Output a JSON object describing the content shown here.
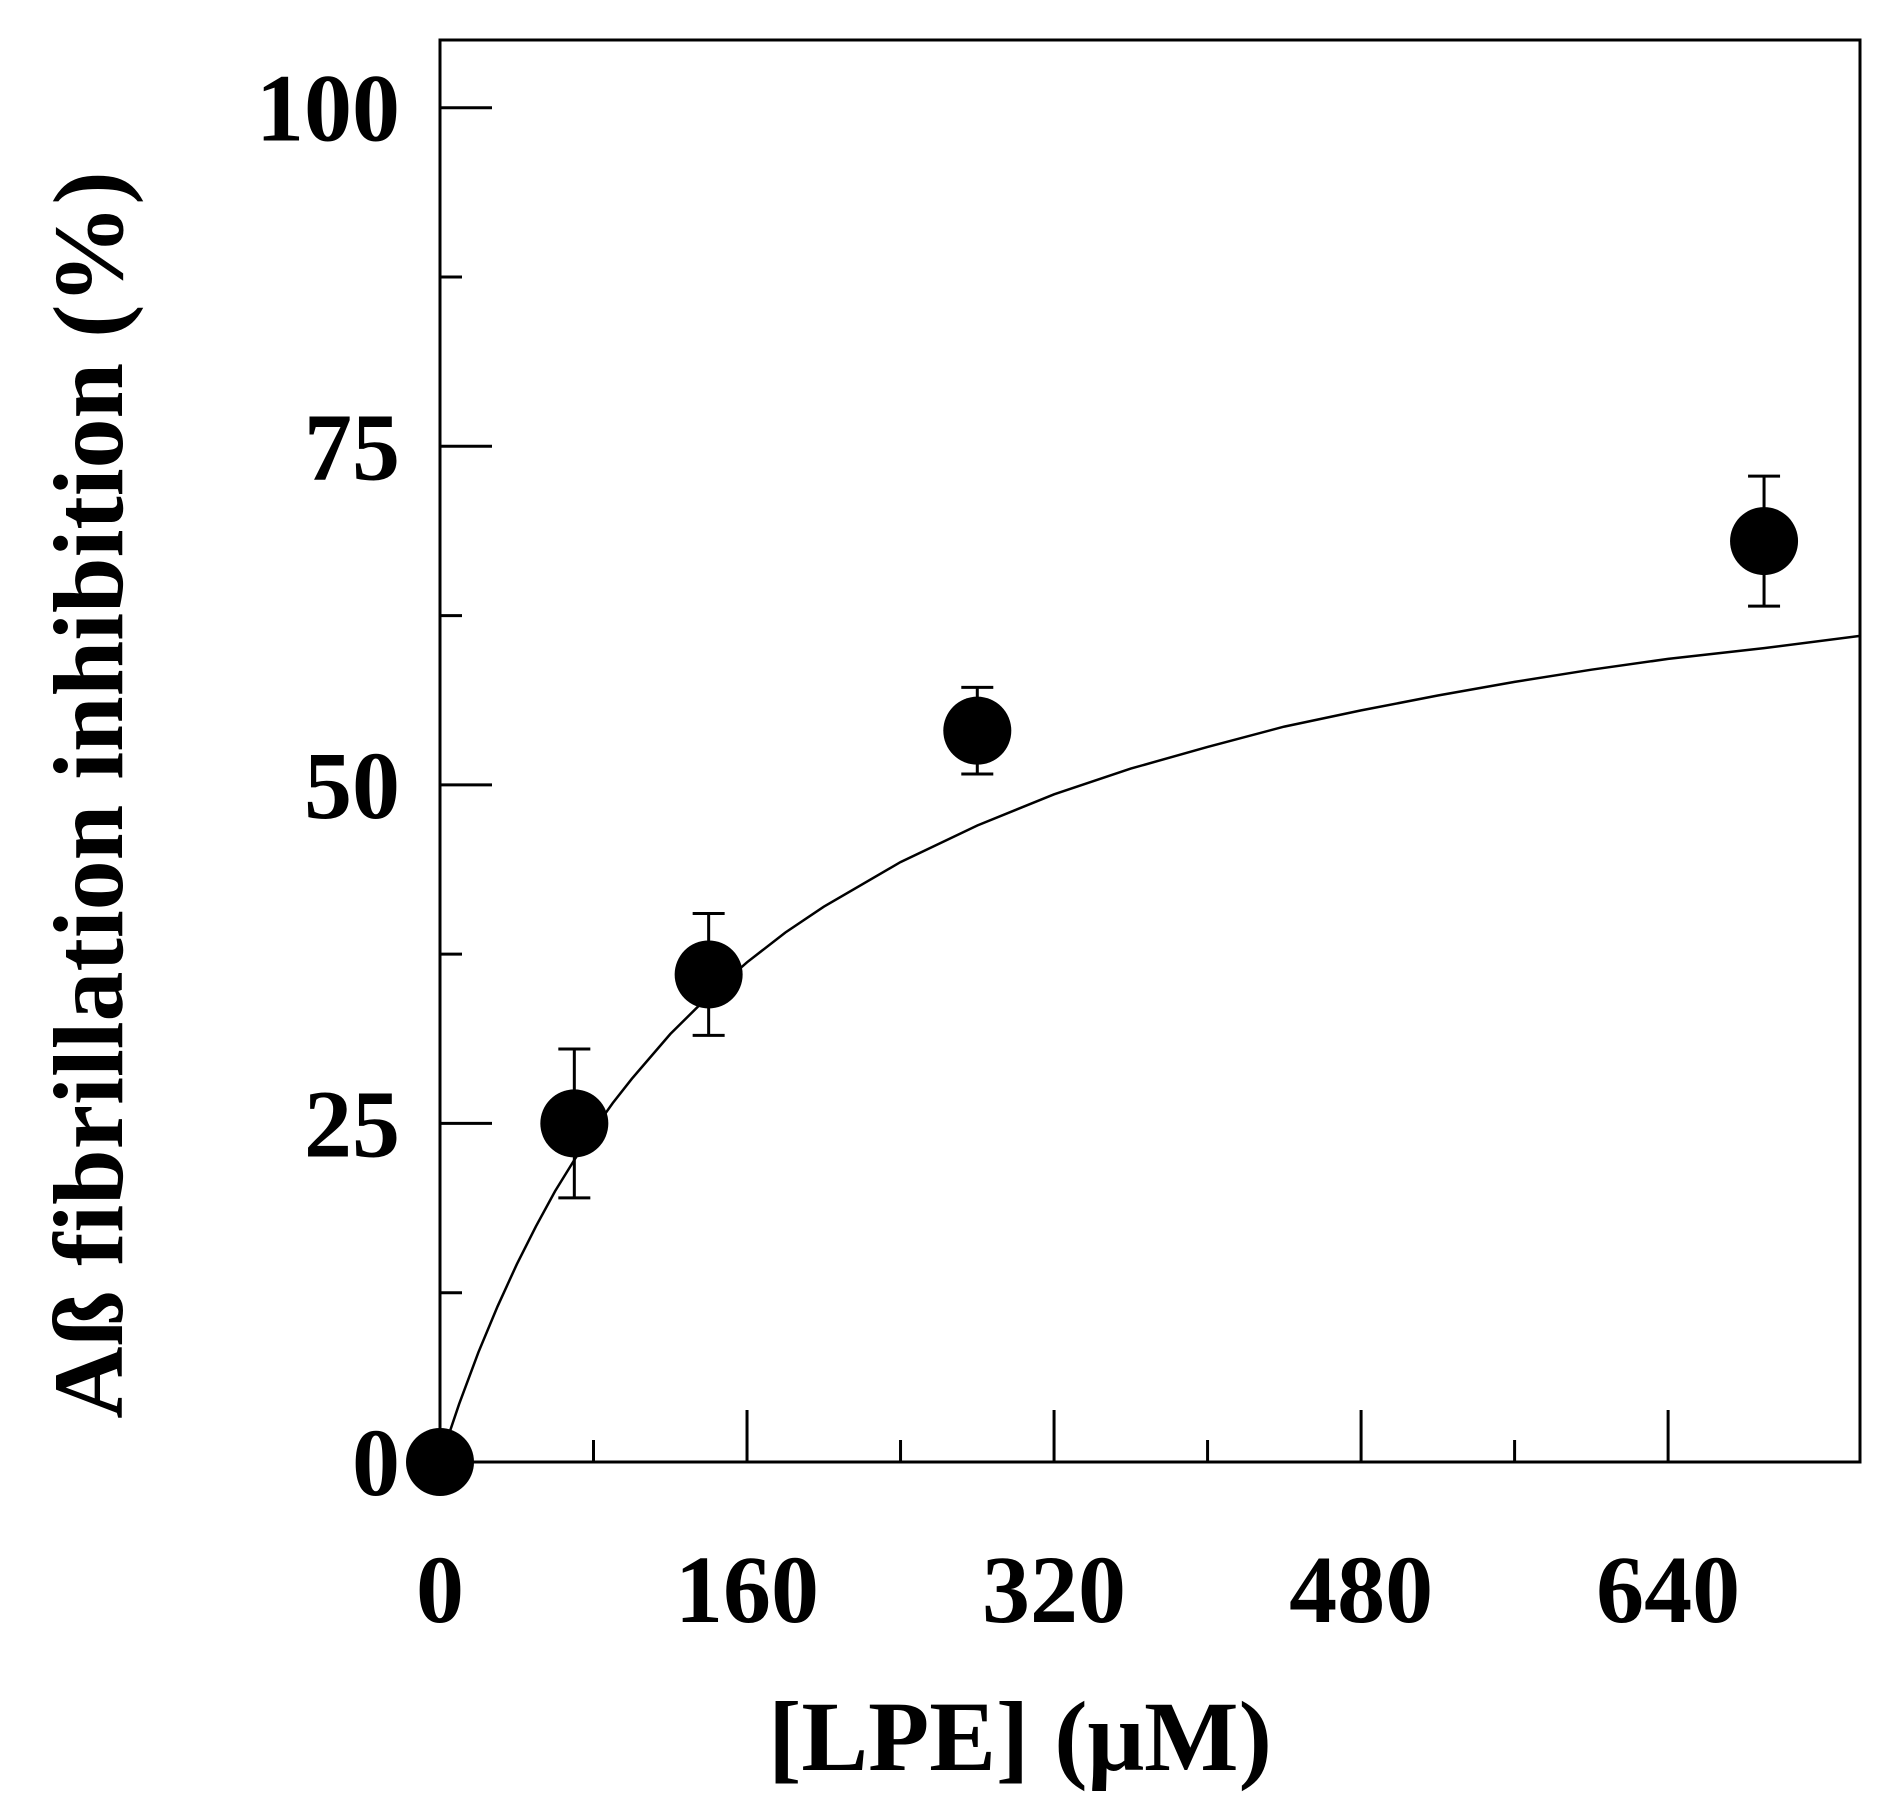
{
  "chart_data": {
    "type": "scatter",
    "title": "",
    "xlabel": "[LPE] (μM)",
    "ylabel": "Aß fibrillation inhibition (%)",
    "xlim": [
      0,
      740
    ],
    "ylim": [
      0,
      105
    ],
    "x_ticks": [
      0,
      160,
      320,
      480,
      640
    ],
    "y_ticks": [
      0,
      25,
      50,
      75,
      100
    ],
    "grid": false,
    "legend": "none",
    "series": [
      {
        "x": [
          0,
          70,
          140,
          280,
          690
        ],
        "y": [
          0,
          25,
          36,
          54,
          68
        ],
        "error": [
          0,
          5.5,
          4.5,
          3.2,
          4.8
        ]
      }
    ],
    "fit_curve": {
      "x": [
        0,
        5,
        10,
        20,
        30,
        40,
        50,
        60,
        70,
        80,
        90,
        100,
        120,
        140,
        160,
        180,
        200,
        240,
        280,
        320,
        360,
        400,
        440,
        480,
        520,
        560,
        600,
        640,
        690,
        740
      ],
      "y": [
        0,
        2.2,
        4.3,
        8.1,
        11.5,
        14.6,
        17.4,
        20.0,
        22.3,
        24.5,
        26.5,
        28.3,
        31.6,
        34.4,
        36.9,
        39.1,
        41.0,
        44.3,
        47.0,
        49.3,
        51.2,
        52.8,
        54.3,
        55.5,
        56.6,
        57.6,
        58.5,
        59.3,
        60.1,
        61.0
      ]
    },
    "colors": {
      "marker": "#000000",
      "line": "#000000",
      "axis": "#000000"
    }
  }
}
